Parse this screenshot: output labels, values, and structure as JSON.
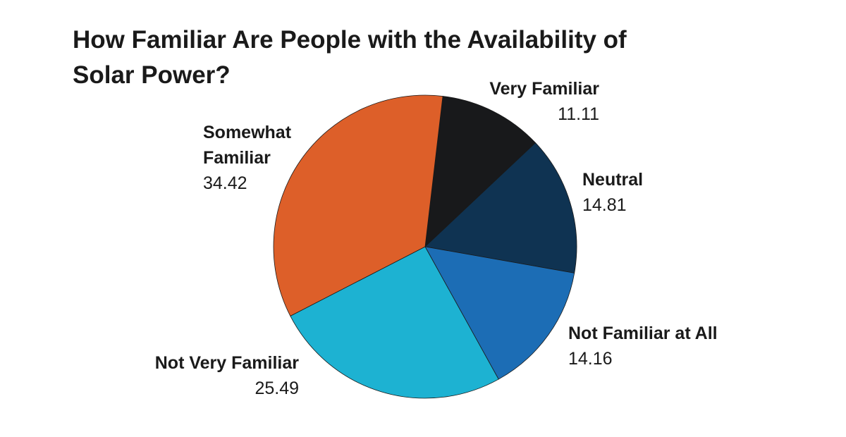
{
  "chart_data": {
    "type": "pie",
    "title": "How Familiar Are People with the Availability of Solar Power?",
    "categories": [
      "Very Familiar",
      "Neutral",
      "Not Familiar at All",
      "Not Very Familiar",
      "Somewhat Familiar"
    ],
    "values": [
      11.11,
      14.81,
      14.16,
      25.49,
      34.42
    ],
    "colors": [
      "#18191b",
      "#0f3352",
      "#1c6db5",
      "#1db2d2",
      "#dd5f29"
    ]
  }
}
